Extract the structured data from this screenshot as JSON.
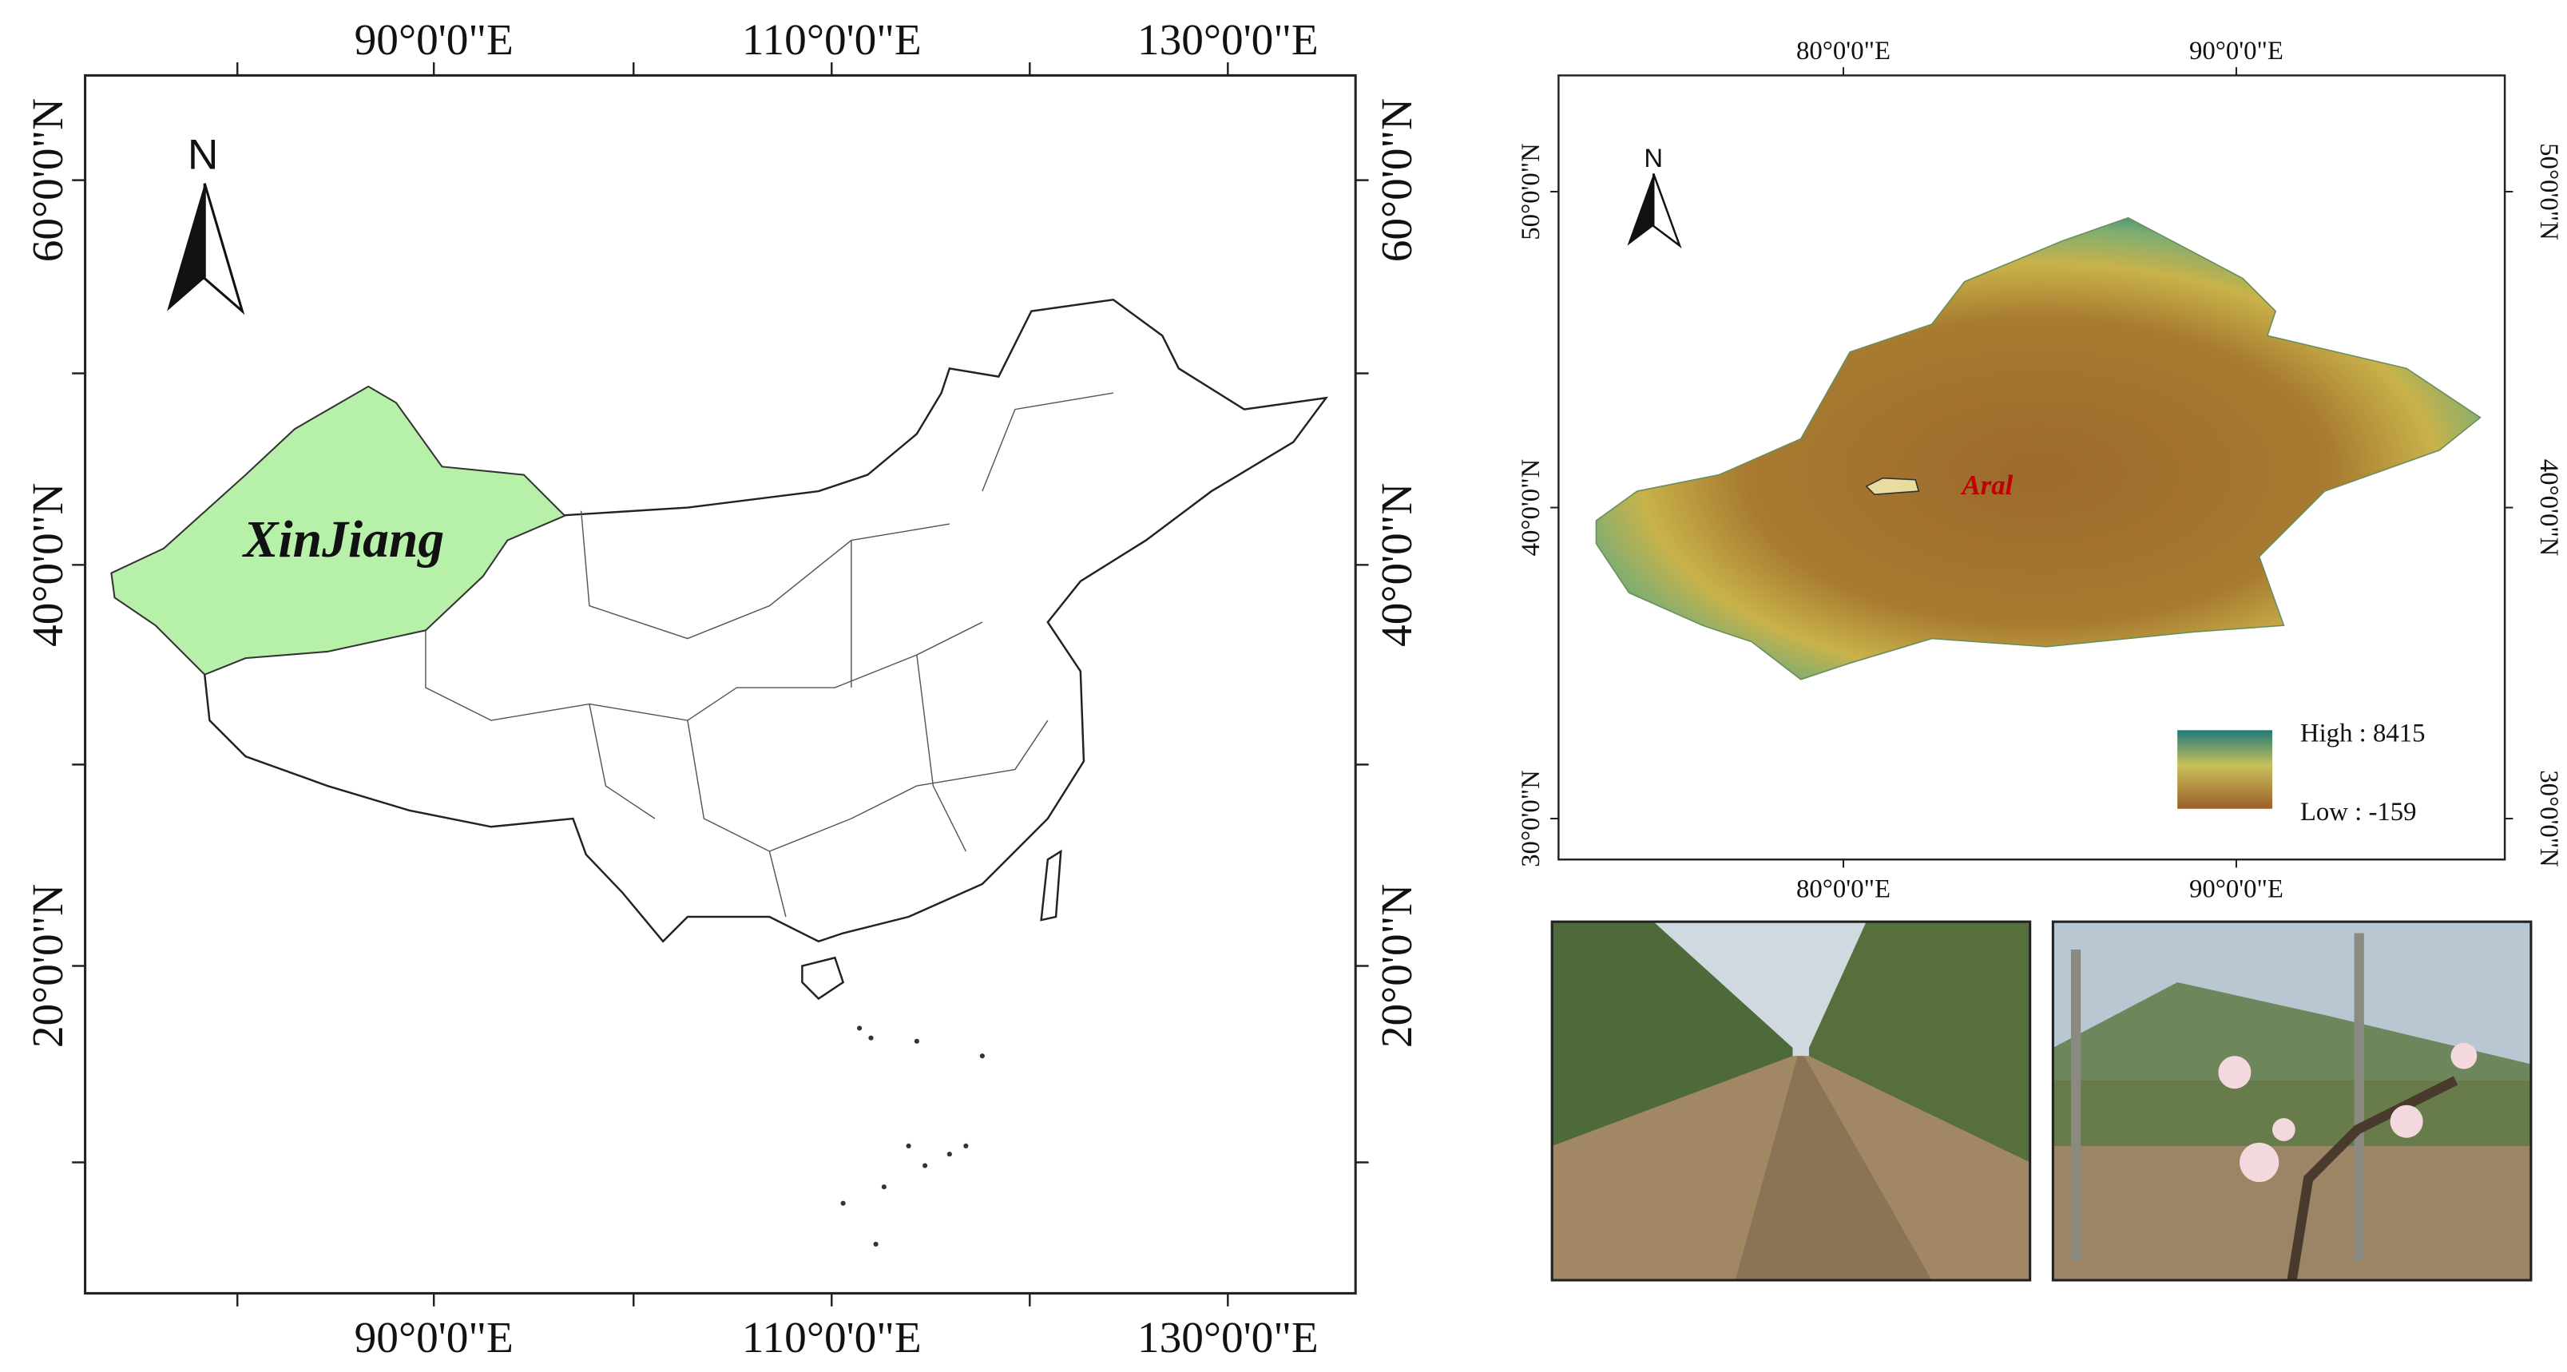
{
  "left_map": {
    "north": "N",
    "region_label": "XinJiang",
    "top_labels": [
      "90°0'0\"E",
      "110°0'0\"E",
      "130°0'0\"E"
    ],
    "bottom_labels": [
      "90°0'0\"E",
      "110°0'0\"E",
      "130°0'0\"E"
    ],
    "left_labels": [
      "60°0'0\"N",
      "40°0'0\"N",
      "20°0'0\"N"
    ],
    "right_labels": [
      "60°0'0\"N",
      "40°0'0\"N",
      "20°0'0\"N"
    ]
  },
  "right_map": {
    "north": "N",
    "site_label": "Aral",
    "top_labels": [
      "80°0'0\"E",
      "90°0'0\"E"
    ],
    "bottom_labels": [
      "80°0'0\"E",
      "90°0'0\"E"
    ],
    "left_labels": [
      "50°0'0\"N",
      "40°0'0\"N",
      "30°0'0\"N"
    ],
    "right_labels": [
      "50°0'0\"N",
      "40°0'0\"N",
      "30°0'0\"N"
    ],
    "legend": {
      "high": "High : 8415",
      "low": "Low : -159"
    }
  }
}
